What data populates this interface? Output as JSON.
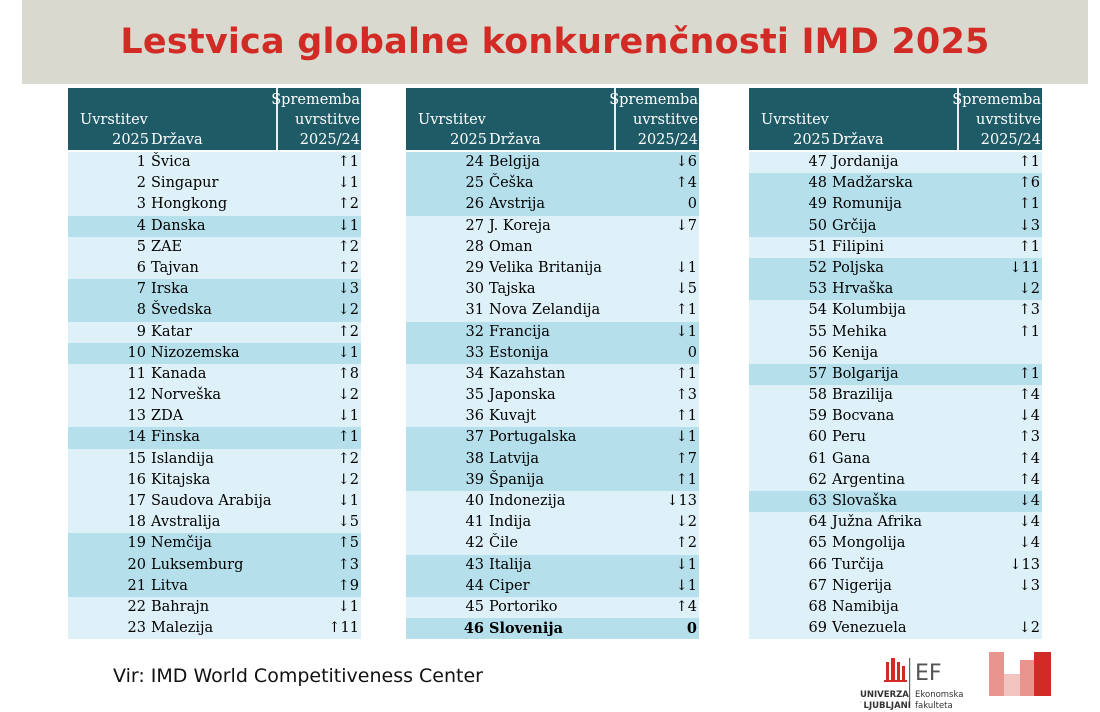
{
  "title": "Lestvica globalne konkurenčnosti IMD 2025",
  "headers": {
    "rank_line1": "Uvrstitev",
    "rank_line2": "2025",
    "country": "Država",
    "change_line1": "Sprememba",
    "change_line2": "uvrstitve",
    "change_line3": "2025/24"
  },
  "tables": [
    {
      "rows": [
        {
          "rank": "1",
          "country": "Švica",
          "change": "↑1",
          "hl": false
        },
        {
          "rank": "2",
          "country": "Singapur",
          "change": "↓1",
          "hl": false
        },
        {
          "rank": "3",
          "country": "Hongkong",
          "change": "↑2",
          "hl": false
        },
        {
          "rank": "4",
          "country": "Danska",
          "change": "↓1",
          "hl": true
        },
        {
          "rank": "5",
          "country": "ZAE",
          "change": "↑2",
          "hl": false
        },
        {
          "rank": "6",
          "country": "Tajvan",
          "change": "↑2",
          "hl": false
        },
        {
          "rank": "7",
          "country": "Irska",
          "change": "↓3",
          "hl": true
        },
        {
          "rank": "8",
          "country": "Švedska",
          "change": "↓2",
          "hl": true
        },
        {
          "rank": "9",
          "country": "Katar",
          "change": "↑2",
          "hl": false
        },
        {
          "rank": "10",
          "country": "Nizozemska",
          "change": "↓1",
          "hl": true
        },
        {
          "rank": "11",
          "country": "Kanada",
          "change": "↑8",
          "hl": false
        },
        {
          "rank": "12",
          "country": "Norveška",
          "change": "↓2",
          "hl": false
        },
        {
          "rank": "13",
          "country": "ZDA",
          "change": "↓1",
          "hl": false
        },
        {
          "rank": "14",
          "country": "Finska",
          "change": "↑1",
          "hl": true
        },
        {
          "rank": "15",
          "country": "Islandija",
          "change": "↑2",
          "hl": false
        },
        {
          "rank": "16",
          "country": "Kitajska",
          "change": "↓2",
          "hl": false
        },
        {
          "rank": "17",
          "country": "Saudova Arabija",
          "change": "↓1",
          "hl": false
        },
        {
          "rank": "18",
          "country": "Avstralija",
          "change": "↓5",
          "hl": false
        },
        {
          "rank": "19",
          "country": "Nemčija",
          "change": "↑5",
          "hl": true
        },
        {
          "rank": "20",
          "country": "Luksemburg",
          "change": "↑3",
          "hl": true
        },
        {
          "rank": "21",
          "country": "Litva",
          "change": "↑9",
          "hl": true
        },
        {
          "rank": "22",
          "country": "Bahrajn",
          "change": "↓1",
          "hl": false
        },
        {
          "rank": "23",
          "country": "Malezija",
          "change": "↑11",
          "hl": false
        }
      ]
    },
    {
      "rows": [
        {
          "rank": "24",
          "country": "Belgija",
          "change": "↓6",
          "hl": true
        },
        {
          "rank": "25",
          "country": "Češka",
          "change": "↑4",
          "hl": true
        },
        {
          "rank": "26",
          "country": "Avstrija",
          "change": "0",
          "hl": true
        },
        {
          "rank": "27",
          "country": "J. Koreja",
          "change": "↓7",
          "hl": false
        },
        {
          "rank": "28",
          "country": "Oman",
          "change": "",
          "hl": false
        },
        {
          "rank": "29",
          "country": "Velika Britanija",
          "change": "↓1",
          "hl": false
        },
        {
          "rank": "30",
          "country": "Tajska",
          "change": "↓5",
          "hl": false
        },
        {
          "rank": "31",
          "country": "Nova Zelandija",
          "change": "↑1",
          "hl": false
        },
        {
          "rank": "32",
          "country": "Francija",
          "change": "↓1",
          "hl": true
        },
        {
          "rank": "33",
          "country": "Estonija",
          "change": "0",
          "hl": true
        },
        {
          "rank": "34",
          "country": "Kazahstan",
          "change": "↑1",
          "hl": false
        },
        {
          "rank": "35",
          "country": "Japonska",
          "change": "↑3",
          "hl": false
        },
        {
          "rank": "36",
          "country": "Kuvajt",
          "change": "↑1",
          "hl": false
        },
        {
          "rank": "37",
          "country": "Portugalska",
          "change": "↓1",
          "hl": true
        },
        {
          "rank": "38",
          "country": "Latvija",
          "change": "↑7",
          "hl": true
        },
        {
          "rank": "39",
          "country": "Španija",
          "change": "↑1",
          "hl": true
        },
        {
          "rank": "40",
          "country": "Indonezija",
          "change": "↓13",
          "hl": false
        },
        {
          "rank": "41",
          "country": "Indija",
          "change": "↓2",
          "hl": false
        },
        {
          "rank": "42",
          "country": "Čile",
          "change": "↑2",
          "hl": false
        },
        {
          "rank": "43",
          "country": "Italija",
          "change": "↓1",
          "hl": true
        },
        {
          "rank": "44",
          "country": "Ciper",
          "change": "↓1",
          "hl": true
        },
        {
          "rank": "45",
          "country": "Portoriko",
          "change": "↑4",
          "hl": false
        },
        {
          "rank": "46",
          "country": "Slovenija",
          "change": "0",
          "hl": true,
          "bold": true
        }
      ]
    },
    {
      "rows": [
        {
          "rank": "47",
          "country": "Jordanija",
          "change": "↑1",
          "hl": false
        },
        {
          "rank": "48",
          "country": "Madžarska",
          "change": "↑6",
          "hl": true
        },
        {
          "rank": "49",
          "country": "Romunija",
          "change": "↑1",
          "hl": true
        },
        {
          "rank": "50",
          "country": "Grčija",
          "change": "↓3",
          "hl": true
        },
        {
          "rank": "51",
          "country": "Filipini",
          "change": "↑1",
          "hl": false
        },
        {
          "rank": "52",
          "country": "Poljska",
          "change": "↓11",
          "hl": true
        },
        {
          "rank": "53",
          "country": "Hrvaška",
          "change": "↓2",
          "hl": true
        },
        {
          "rank": "54",
          "country": "Kolumbija",
          "change": "↑3",
          "hl": false
        },
        {
          "rank": "55",
          "country": "Mehika",
          "change": "↑1",
          "hl": false
        },
        {
          "rank": "56",
          "country": "Kenija",
          "change": "",
          "hl": false
        },
        {
          "rank": "57",
          "country": "Bolgarija",
          "change": "↑1",
          "hl": true
        },
        {
          "rank": "58",
          "country": "Brazilija",
          "change": "↑4",
          "hl": false
        },
        {
          "rank": "59",
          "country": "Bocvana",
          "change": "↓4",
          "hl": false
        },
        {
          "rank": "60",
          "country": "Peru",
          "change": "↑3",
          "hl": false
        },
        {
          "rank": "61",
          "country": "Gana",
          "change": "↑4",
          "hl": false
        },
        {
          "rank": "62",
          "country": "Argentina",
          "change": "↑4",
          "hl": false
        },
        {
          "rank": "63",
          "country": "Slovaška",
          "change": "↓4",
          "hl": true
        },
        {
          "rank": "64",
          "country": "Južna Afrika",
          "change": "↓4",
          "hl": false
        },
        {
          "rank": "65",
          "country": "Mongolija",
          "change": "↓4",
          "hl": false
        },
        {
          "rank": "66",
          "country": "Turčija",
          "change": "↓13",
          "hl": false
        },
        {
          "rank": "67",
          "country": "Nigerija",
          "change": "↓3",
          "hl": false
        },
        {
          "rank": "68",
          "country": "Namibija",
          "change": "",
          "hl": false
        },
        {
          "rank": "69",
          "country": "Venezuela",
          "change": "↓2",
          "hl": false
        }
      ]
    }
  ],
  "source": "Vir: IMD World Competitiveness Center",
  "logo": {
    "text_ef": "EF",
    "uni_line1": "UNIVERZA",
    "uni_line2": "V LJUBLJANI",
    "fac_line1": "Ekonomska",
    "fac_line2": "fakulteta",
    "color_red": "#d22b26",
    "color_light": "#e8958e"
  },
  "colors": {
    "header_bg": "#1f5b67",
    "row_light": "#dff1f8",
    "row_dark": "#b6dfec",
    "title": "#d22b26",
    "banner_bg": "#d9d9cf"
  }
}
